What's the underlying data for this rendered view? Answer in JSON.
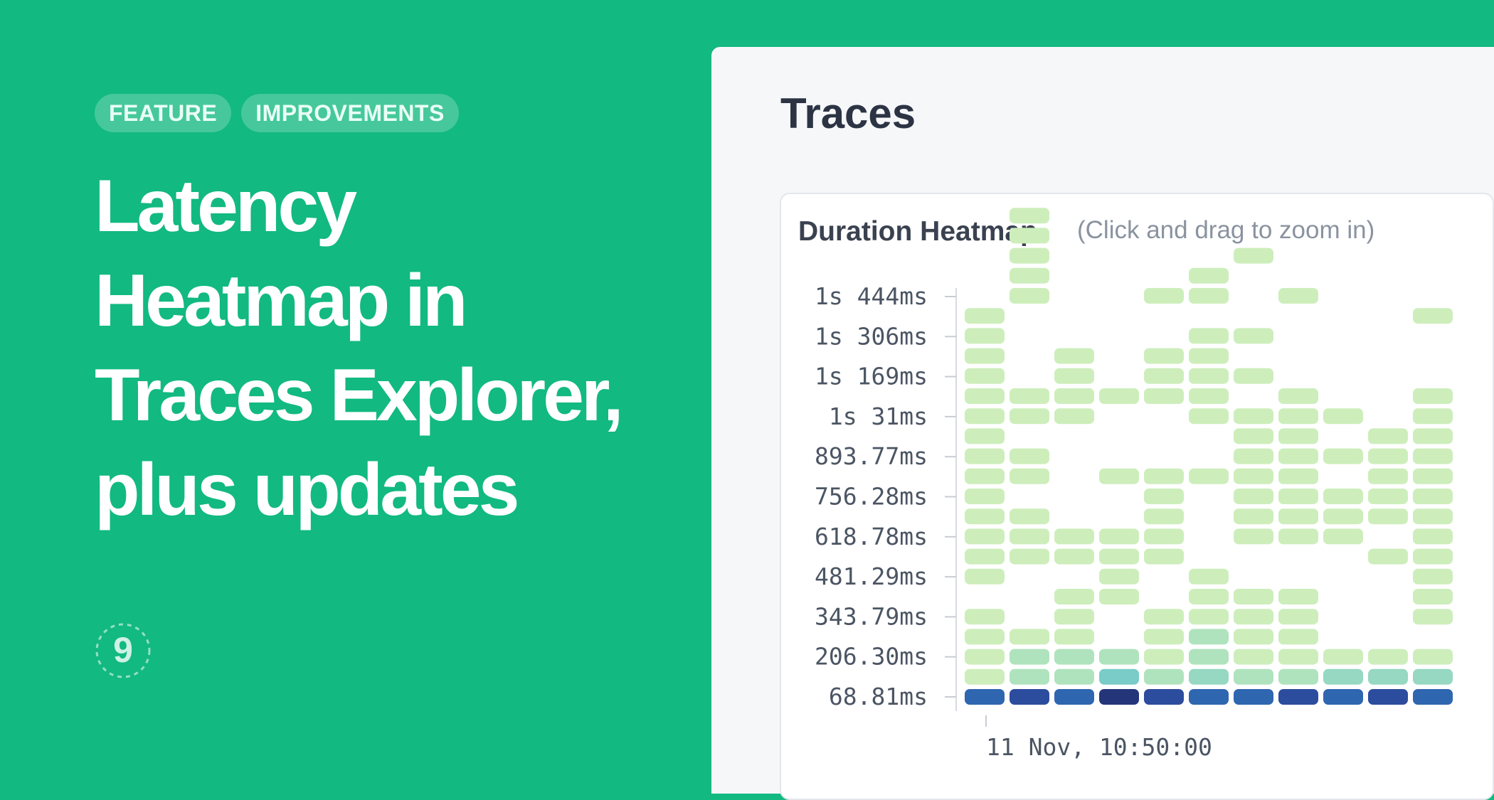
{
  "tags": [
    "FEATURE",
    "IMPROVEMENTS"
  ],
  "headline": [
    "Latency",
    "Heatmap in",
    "Traces Explorer,",
    "plus updates"
  ],
  "logo": {
    "icon": "nine-circle-logo-icon",
    "glyph": "9"
  },
  "panel": {
    "title": "Traces"
  },
  "card": {
    "title": "Duration Heatmap",
    "hint": "(Click and drag to zoom in)"
  },
  "colors": {
    "background": "#12b981",
    "level1": "#cdeebb",
    "level2": "#afe3bd",
    "level3": "#96d8c2",
    "level4": "#79ccc8",
    "level5": "#2f66b0",
    "level6": "#2c4c9e",
    "level7": "#243679"
  },
  "chart_data": {
    "type": "heatmap",
    "title": "Duration Heatmap",
    "y_categories": [
      "68.81ms",
      "206.30ms",
      "343.79ms",
      "481.29ms",
      "618.78ms",
      "756.28ms",
      "893.77ms",
      "1s 31ms",
      "1s 169ms",
      "1s 306ms",
      "1s 444ms"
    ],
    "x_tick_labels": [
      "11 Nov, 10:50:00"
    ],
    "columns": [
      [
        [
          0,
          5
        ],
        [
          1,
          1
        ],
        [
          2,
          1
        ],
        [
          3,
          1
        ],
        [
          4,
          1
        ],
        [
          6,
          1
        ],
        [
          7,
          1
        ],
        [
          8,
          1
        ],
        [
          9,
          1
        ],
        [
          10,
          1
        ],
        [
          11,
          1
        ],
        [
          12,
          1
        ],
        [
          13,
          1
        ],
        [
          14,
          1
        ],
        [
          15,
          1
        ],
        [
          16,
          1
        ],
        [
          17,
          1
        ],
        [
          18,
          1
        ],
        [
          19,
          1
        ]
      ],
      [
        [
          0,
          6
        ],
        [
          1,
          2
        ],
        [
          2,
          2
        ],
        [
          3,
          1
        ],
        [
          7,
          1
        ],
        [
          8,
          1
        ],
        [
          9,
          1
        ],
        [
          11,
          1
        ],
        [
          12,
          1
        ],
        [
          14,
          1
        ],
        [
          15,
          1
        ],
        [
          20,
          1
        ],
        [
          21,
          1
        ],
        [
          22,
          1
        ],
        [
          23,
          1
        ],
        [
          24,
          1
        ]
      ],
      [
        [
          0,
          5
        ],
        [
          1,
          2
        ],
        [
          2,
          2
        ],
        [
          3,
          1
        ],
        [
          4,
          1
        ],
        [
          5,
          1
        ],
        [
          7,
          1
        ],
        [
          8,
          1
        ],
        [
          14,
          1
        ],
        [
          15,
          1
        ],
        [
          16,
          1
        ],
        [
          17,
          1
        ]
      ],
      [
        [
          0,
          7
        ],
        [
          1,
          4
        ],
        [
          2,
          2
        ],
        [
          5,
          1
        ],
        [
          6,
          1
        ],
        [
          7,
          1
        ],
        [
          8,
          1
        ],
        [
          11,
          1
        ],
        [
          15,
          1
        ]
      ],
      [
        [
          0,
          6
        ],
        [
          1,
          2
        ],
        [
          2,
          1
        ],
        [
          3,
          1
        ],
        [
          4,
          1
        ],
        [
          7,
          1
        ],
        [
          8,
          1
        ],
        [
          9,
          1
        ],
        [
          10,
          1
        ],
        [
          11,
          1
        ],
        [
          15,
          1
        ],
        [
          16,
          1
        ],
        [
          17,
          1
        ],
        [
          20,
          1
        ]
      ],
      [
        [
          0,
          5
        ],
        [
          1,
          3
        ],
        [
          2,
          2
        ],
        [
          3,
          2
        ],
        [
          4,
          1
        ],
        [
          5,
          1
        ],
        [
          6,
          1
        ],
        [
          11,
          1
        ],
        [
          14,
          1
        ],
        [
          15,
          1
        ],
        [
          16,
          1
        ],
        [
          17,
          1
        ],
        [
          18,
          1
        ],
        [
          20,
          1
        ],
        [
          21,
          1
        ]
      ],
      [
        [
          0,
          5
        ],
        [
          1,
          2
        ],
        [
          2,
          1
        ],
        [
          3,
          1
        ],
        [
          4,
          1
        ],
        [
          5,
          1
        ],
        [
          8,
          1
        ],
        [
          9,
          1
        ],
        [
          10,
          1
        ],
        [
          11,
          1
        ],
        [
          12,
          1
        ],
        [
          13,
          1
        ],
        [
          14,
          1
        ],
        [
          16,
          1
        ],
        [
          18,
          1
        ],
        [
          22,
          1
        ]
      ],
      [
        [
          0,
          6
        ],
        [
          1,
          2
        ],
        [
          2,
          1
        ],
        [
          3,
          1
        ],
        [
          4,
          1
        ],
        [
          5,
          1
        ],
        [
          8,
          1
        ],
        [
          9,
          1
        ],
        [
          10,
          1
        ],
        [
          11,
          1
        ],
        [
          12,
          1
        ],
        [
          13,
          1
        ],
        [
          14,
          1
        ],
        [
          15,
          1
        ],
        [
          20,
          1
        ]
      ],
      [
        [
          0,
          5
        ],
        [
          1,
          3
        ],
        [
          2,
          1
        ],
        [
          8,
          1
        ],
        [
          9,
          1
        ],
        [
          10,
          1
        ],
        [
          12,
          1
        ],
        [
          14,
          1
        ]
      ],
      [
        [
          0,
          6
        ],
        [
          1,
          3
        ],
        [
          2,
          1
        ],
        [
          7,
          1
        ],
        [
          9,
          1
        ],
        [
          10,
          1
        ],
        [
          11,
          1
        ],
        [
          12,
          1
        ],
        [
          13,
          1
        ]
      ],
      [
        [
          0,
          5
        ],
        [
          1,
          3
        ],
        [
          2,
          1
        ],
        [
          4,
          1
        ],
        [
          5,
          1
        ],
        [
          6,
          1
        ],
        [
          7,
          1
        ],
        [
          8,
          1
        ],
        [
          9,
          1
        ],
        [
          10,
          1
        ],
        [
          11,
          1
        ],
        [
          12,
          1
        ],
        [
          13,
          1
        ],
        [
          14,
          1
        ],
        [
          15,
          1
        ],
        [
          19,
          1
        ]
      ]
    ]
  }
}
